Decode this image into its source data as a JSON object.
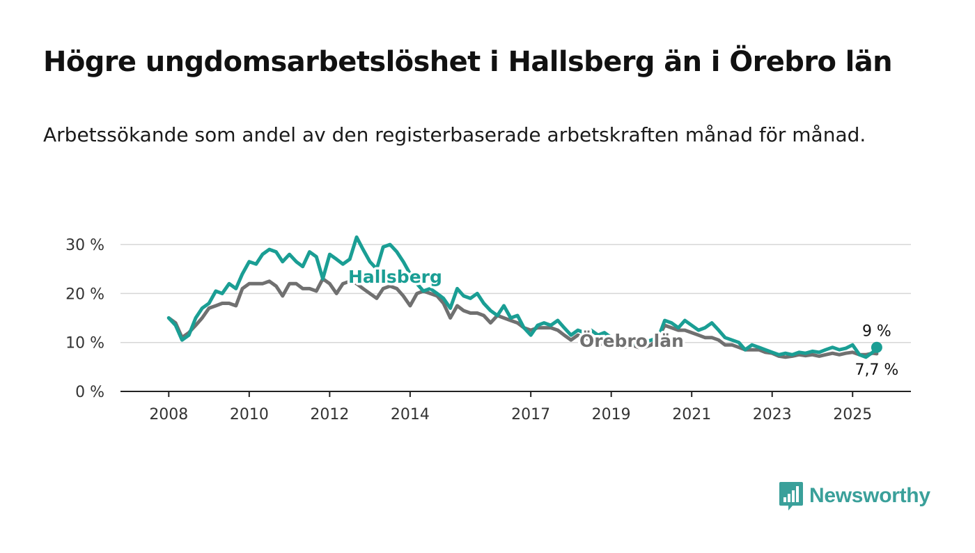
{
  "title": "Högre ungdomsarbetslöshet i Hallsberg än i Örebro län",
  "subtitle": "Arbetssökande som andel av den registerbaserade arbetskraften månad för månad.",
  "brand": {
    "name": "Newsworthy",
    "icon": "bar-chart-speech-bubble-icon",
    "color": "#3aa09a"
  },
  "chart_data": {
    "type": "line",
    "y_ticks": [
      0,
      10,
      20,
      30
    ],
    "y_tick_labels": [
      "0 %",
      "10 %",
      "20 %",
      "30 %"
    ],
    "ylim": [
      0,
      33
    ],
    "x_ticks": [
      2008,
      2010,
      2012,
      2014,
      2017,
      2019,
      2021,
      2023,
      2025
    ],
    "x_tick_labels": [
      "2008",
      "2010",
      "2012",
      "2014",
      "2017",
      "2019",
      "2021",
      "2023",
      "2025"
    ],
    "xlim": [
      2006.8,
      2026.45
    ],
    "grid": true,
    "annotations": {
      "hallsberg_last": "9 %",
      "orebro_last": "7,7 %"
    },
    "series": [
      {
        "name": "Hallsberg",
        "color": "#1a9e94",
        "points": [
          [
            2008.0,
            15
          ],
          [
            2008.17,
            13.5
          ],
          [
            2008.33,
            10.5
          ],
          [
            2008.5,
            11.5
          ],
          [
            2008.67,
            15
          ],
          [
            2008.83,
            17
          ],
          [
            2009.0,
            18
          ],
          [
            2009.17,
            20.5
          ],
          [
            2009.33,
            20
          ],
          [
            2009.5,
            22
          ],
          [
            2009.67,
            21
          ],
          [
            2009.83,
            24
          ],
          [
            2010.0,
            26.5
          ],
          [
            2010.17,
            26
          ],
          [
            2010.33,
            28
          ],
          [
            2010.5,
            29
          ],
          [
            2010.67,
            28.5
          ],
          [
            2010.83,
            26.5
          ],
          [
            2011.0,
            28
          ],
          [
            2011.17,
            26.5
          ],
          [
            2011.33,
            25.5
          ],
          [
            2011.5,
            28.5
          ],
          [
            2011.67,
            27.5
          ],
          [
            2011.83,
            23
          ],
          [
            2012.0,
            28
          ],
          [
            2012.17,
            27
          ],
          [
            2012.33,
            26
          ],
          [
            2012.5,
            27
          ],
          [
            2012.67,
            31.5
          ],
          [
            2012.83,
            29
          ],
          [
            2013.0,
            26.5
          ],
          [
            2013.17,
            25
          ],
          [
            2013.33,
            29.5
          ],
          [
            2013.5,
            30
          ],
          [
            2013.67,
            28.5
          ],
          [
            2013.83,
            26.5
          ],
          [
            2014.0,
            24
          ],
          [
            2014.17,
            22
          ],
          [
            2014.33,
            20.5
          ],
          [
            2014.5,
            21
          ],
          [
            2014.67,
            20
          ],
          [
            2014.83,
            19
          ],
          [
            2015.0,
            17
          ],
          [
            2015.17,
            21
          ],
          [
            2015.33,
            19.5
          ],
          [
            2015.5,
            19
          ],
          [
            2015.67,
            20
          ],
          [
            2015.83,
            18
          ],
          [
            2016.0,
            16.5
          ],
          [
            2016.17,
            15.5
          ],
          [
            2016.33,
            17.5
          ],
          [
            2016.5,
            15
          ],
          [
            2016.67,
            15.5
          ],
          [
            2016.83,
            13
          ],
          [
            2017.0,
            11.5
          ],
          [
            2017.17,
            13.5
          ],
          [
            2017.33,
            14
          ],
          [
            2017.5,
            13.5
          ],
          [
            2017.67,
            14.5
          ],
          [
            2017.83,
            13
          ],
          [
            2018.0,
            11.5
          ],
          [
            2018.17,
            12.5
          ],
          [
            2018.33,
            12
          ],
          [
            2018.5,
            12.5
          ],
          [
            2018.67,
            11.5
          ],
          [
            2018.83,
            12
          ],
          [
            2019.0,
            11
          ],
          [
            2019.17,
            10.5
          ],
          [
            2019.33,
            10
          ],
          [
            2019.5,
            10
          ],
          [
            2019.67,
            9.5
          ],
          [
            2019.83,
            10
          ],
          [
            2020.0,
            10.5
          ],
          [
            2020.17,
            11
          ],
          [
            2020.33,
            14.5
          ],
          [
            2020.5,
            14
          ],
          [
            2020.67,
            13
          ],
          [
            2020.83,
            14.5
          ],
          [
            2021.0,
            13.5
          ],
          [
            2021.17,
            12.5
          ],
          [
            2021.33,
            13
          ],
          [
            2021.5,
            14
          ],
          [
            2021.67,
            12.5
          ],
          [
            2021.83,
            11
          ],
          [
            2022.0,
            10.5
          ],
          [
            2022.17,
            10
          ],
          [
            2022.33,
            8.5
          ],
          [
            2022.5,
            9.5
          ],
          [
            2022.67,
            9
          ],
          [
            2022.83,
            8.5
          ],
          [
            2023.0,
            8
          ],
          [
            2023.17,
            7.5
          ],
          [
            2023.33,
            7.8
          ],
          [
            2023.5,
            7.5
          ],
          [
            2023.67,
            8
          ],
          [
            2023.83,
            7.8
          ],
          [
            2024.0,
            8.2
          ],
          [
            2024.17,
            8
          ],
          [
            2024.33,
            8.5
          ],
          [
            2024.5,
            9
          ],
          [
            2024.67,
            8.5
          ],
          [
            2024.83,
            8.8
          ],
          [
            2025.0,
            9.5
          ],
          [
            2025.17,
            7.5
          ],
          [
            2025.33,
            7
          ],
          [
            2025.5,
            8
          ],
          [
            2025.6,
            9
          ]
        ]
      },
      {
        "name": "Örebro län",
        "color": "#707070",
        "points": [
          [
            2008.0,
            15
          ],
          [
            2008.17,
            14
          ],
          [
            2008.33,
            11
          ],
          [
            2008.5,
            12
          ],
          [
            2008.67,
            13.5
          ],
          [
            2008.83,
            15
          ],
          [
            2009.0,
            17
          ],
          [
            2009.17,
            17.5
          ],
          [
            2009.33,
            18
          ],
          [
            2009.5,
            18
          ],
          [
            2009.67,
            17.5
          ],
          [
            2009.83,
            21
          ],
          [
            2010.0,
            22
          ],
          [
            2010.17,
            22
          ],
          [
            2010.33,
            22
          ],
          [
            2010.5,
            22.5
          ],
          [
            2010.67,
            21.5
          ],
          [
            2010.83,
            19.5
          ],
          [
            2011.0,
            22
          ],
          [
            2011.17,
            22
          ],
          [
            2011.33,
            21
          ],
          [
            2011.5,
            21
          ],
          [
            2011.67,
            20.5
          ],
          [
            2011.83,
            23
          ],
          [
            2012.0,
            22
          ],
          [
            2012.17,
            20
          ],
          [
            2012.33,
            22
          ],
          [
            2012.5,
            22.5
          ],
          [
            2012.67,
            22
          ],
          [
            2012.83,
            21
          ],
          [
            2013.0,
            20
          ],
          [
            2013.17,
            19
          ],
          [
            2013.33,
            21
          ],
          [
            2013.5,
            21.5
          ],
          [
            2013.67,
            21
          ],
          [
            2013.83,
            19.5
          ],
          [
            2014.0,
            17.5
          ],
          [
            2014.17,
            20
          ],
          [
            2014.33,
            20.5
          ],
          [
            2014.5,
            20
          ],
          [
            2014.67,
            19.5
          ],
          [
            2014.83,
            18
          ],
          [
            2015.0,
            15
          ],
          [
            2015.17,
            17.5
          ],
          [
            2015.33,
            16.5
          ],
          [
            2015.5,
            16
          ],
          [
            2015.67,
            16
          ],
          [
            2015.83,
            15.5
          ],
          [
            2016.0,
            14
          ],
          [
            2016.17,
            15.5
          ],
          [
            2016.33,
            15
          ],
          [
            2016.5,
            14.5
          ],
          [
            2016.67,
            14
          ],
          [
            2016.83,
            13
          ],
          [
            2017.0,
            12.5
          ],
          [
            2017.17,
            13
          ],
          [
            2017.33,
            13
          ],
          [
            2017.5,
            13
          ],
          [
            2017.67,
            12.5
          ],
          [
            2017.83,
            11.5
          ],
          [
            2018.0,
            10.5
          ],
          [
            2018.17,
            11.5
          ],
          [
            2018.33,
            11
          ],
          [
            2018.5,
            10.5
          ],
          [
            2018.67,
            10
          ],
          [
            2018.83,
            9.5
          ],
          [
            2019.0,
            9.5
          ],
          [
            2019.17,
            9
          ],
          [
            2019.33,
            9
          ],
          [
            2019.5,
            9.5
          ],
          [
            2019.67,
            9
          ],
          [
            2019.83,
            9
          ],
          [
            2020.0,
            9.5
          ],
          [
            2020.17,
            11
          ],
          [
            2020.33,
            13.5
          ],
          [
            2020.5,
            13
          ],
          [
            2020.67,
            12.5
          ],
          [
            2020.83,
            12.5
          ],
          [
            2021.0,
            12
          ],
          [
            2021.17,
            11.5
          ],
          [
            2021.33,
            11
          ],
          [
            2021.5,
            11
          ],
          [
            2021.67,
            10.5
          ],
          [
            2021.83,
            9.5
          ],
          [
            2022.0,
            9.5
          ],
          [
            2022.17,
            9
          ],
          [
            2022.33,
            8.5
          ],
          [
            2022.5,
            8.5
          ],
          [
            2022.67,
            8.5
          ],
          [
            2022.83,
            8
          ],
          [
            2023.0,
            7.8
          ],
          [
            2023.17,
            7.2
          ],
          [
            2023.33,
            7
          ],
          [
            2023.5,
            7.2
          ],
          [
            2023.67,
            7.5
          ],
          [
            2023.83,
            7.3
          ],
          [
            2024.0,
            7.5
          ],
          [
            2024.17,
            7.2
          ],
          [
            2024.33,
            7.5
          ],
          [
            2024.5,
            7.8
          ],
          [
            2024.67,
            7.5
          ],
          [
            2024.83,
            7.8
          ],
          [
            2025.0,
            8
          ],
          [
            2025.17,
            7.5
          ],
          [
            2025.33,
            7.5
          ],
          [
            2025.5,
            7.8
          ],
          [
            2025.6,
            7.7
          ]
        ]
      }
    ]
  }
}
